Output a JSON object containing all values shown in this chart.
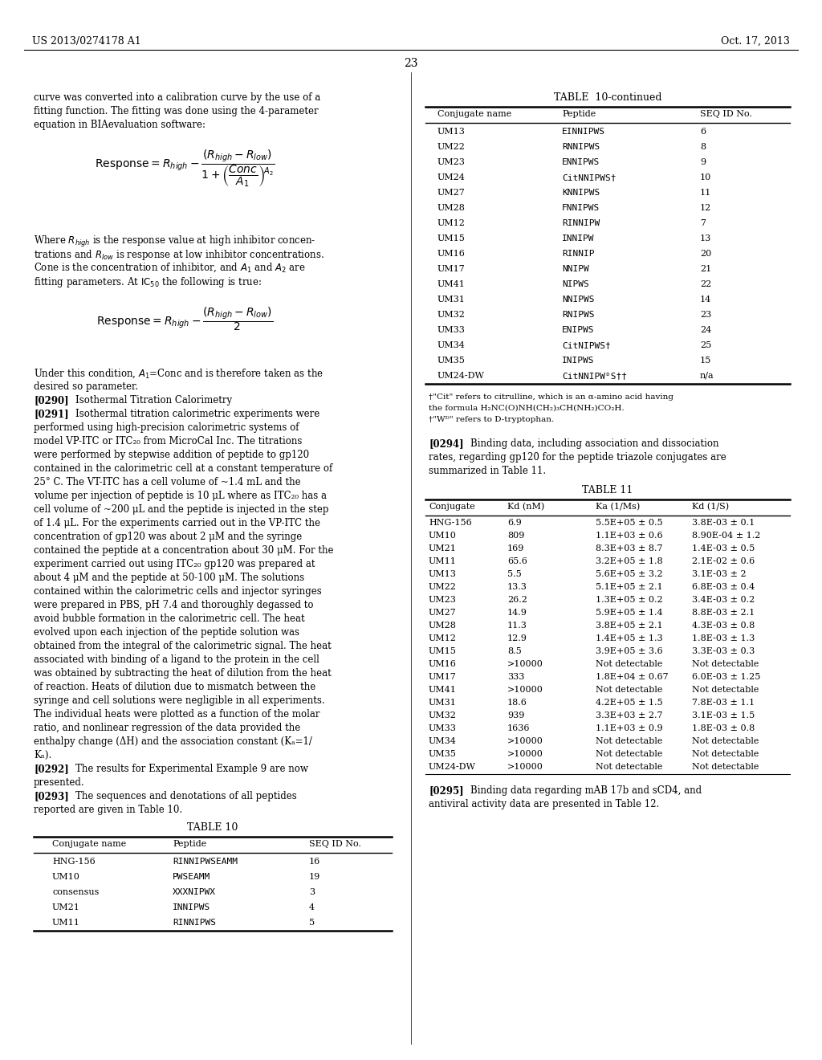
{
  "page_header_left": "US 2013/0274178 A1",
  "page_header_right": "Oct. 17, 2013",
  "page_number": "23",
  "table10cont_rows": [
    [
      "UM13",
      "EINNIPWS",
      "6"
    ],
    [
      "UM22",
      "RNNIPWS",
      "8"
    ],
    [
      "UM23",
      "ENNIPWS",
      "9"
    ],
    [
      "UM24",
      "CitNNIPWS†",
      "10"
    ],
    [
      "UM27",
      "KNNIPWS",
      "11"
    ],
    [
      "UM28",
      "FNNIPWS",
      "12"
    ],
    [
      "UM12",
      "RINNIPW",
      "7"
    ],
    [
      "UM15",
      "INNIPW",
      "13"
    ],
    [
      "UM16",
      "RINNIP",
      "20"
    ],
    [
      "UM17",
      "NNIPW",
      "21"
    ],
    [
      "UM41",
      "NIPWS",
      "22"
    ],
    [
      "UM31",
      "NNIPWS",
      "14"
    ],
    [
      "UM32",
      "RNIPWS",
      "23"
    ],
    [
      "UM33",
      "ENIPWS",
      "24"
    ],
    [
      "UM34",
      "CitNIPWS†",
      "25"
    ],
    [
      "UM35",
      "INIPWS",
      "15"
    ],
    [
      "UM24-DW",
      "CitNNIPWᴰS††",
      "n/a"
    ]
  ],
  "table10_rows": [
    [
      "HNG-156",
      "RINNIPWSEAMM",
      "16"
    ],
    [
      "UM10",
      "PWSEAMM",
      "19"
    ],
    [
      "consensus",
      "XXXNIPWX",
      "3"
    ],
    [
      "UM21",
      "INNIPWS",
      "4"
    ],
    [
      "UM11",
      "RINNIPWS",
      "5"
    ]
  ],
  "table11_rows": [
    [
      "HNG-156",
      "6.9",
      "5.5E+05 ± 0.5",
      "3.8E-03 ± 0.1"
    ],
    [
      "UM10",
      "809",
      "1.1E+03 ± 0.6",
      "8.90E-04 ± 1.2"
    ],
    [
      "UM21",
      "169",
      "8.3E+03 ± 8.7",
      "1.4E-03 ± 0.5"
    ],
    [
      "UM11",
      "65.6",
      "3.2E+05 ± 1.8",
      "2.1E-02 ± 0.6"
    ],
    [
      "UM13",
      "5.5",
      "5.6E+05 ± 3.2",
      "3.1E-03 ± 2"
    ],
    [
      "UM22",
      "13.3",
      "5.1E+05 ± 2.1",
      "6.8E-03 ± 0.4"
    ],
    [
      "UM23",
      "26.2",
      "1.3E+05 ± 0.2",
      "3.4E-03 ± 0.2"
    ],
    [
      "UM27",
      "14.9",
      "5.9E+05 ± 1.4",
      "8.8E-03 ± 2.1"
    ],
    [
      "UM28",
      "11.3",
      "3.8E+05 ± 2.1",
      "4.3E-03 ± 0.8"
    ],
    [
      "UM12",
      "12.9",
      "1.4E+05 ± 1.3",
      "1.8E-03 ± 1.3"
    ],
    [
      "UM15",
      "8.5",
      "3.9E+05 ± 3.6",
      "3.3E-03 ± 0.3"
    ],
    [
      "UM16",
      ">10000",
      "Not detectable",
      "Not detectable"
    ],
    [
      "UM17",
      "333",
      "1.8E+04 ± 0.67",
      "6.0E-03 ± 1.25"
    ],
    [
      "UM41",
      ">10000",
      "Not detectable",
      "Not detectable"
    ],
    [
      "UM31",
      "18.6",
      "4.2E+05 ± 1.5",
      "7.8E-03 ± 1.1"
    ],
    [
      "UM32",
      "939",
      "3.3E+03 ± 2.7",
      "3.1E-03 ± 1.5"
    ],
    [
      "UM33",
      "1636",
      "1.1E+03 ± 0.9",
      "1.8E-03 ± 0.8"
    ],
    [
      "UM34",
      ">10000",
      "Not detectable",
      "Not detectable"
    ],
    [
      "UM35",
      ">10000",
      "Not detectable",
      "Not detectable"
    ],
    [
      "UM24-DW",
      ">10000",
      "Not detectable",
      "Not detectable"
    ]
  ]
}
